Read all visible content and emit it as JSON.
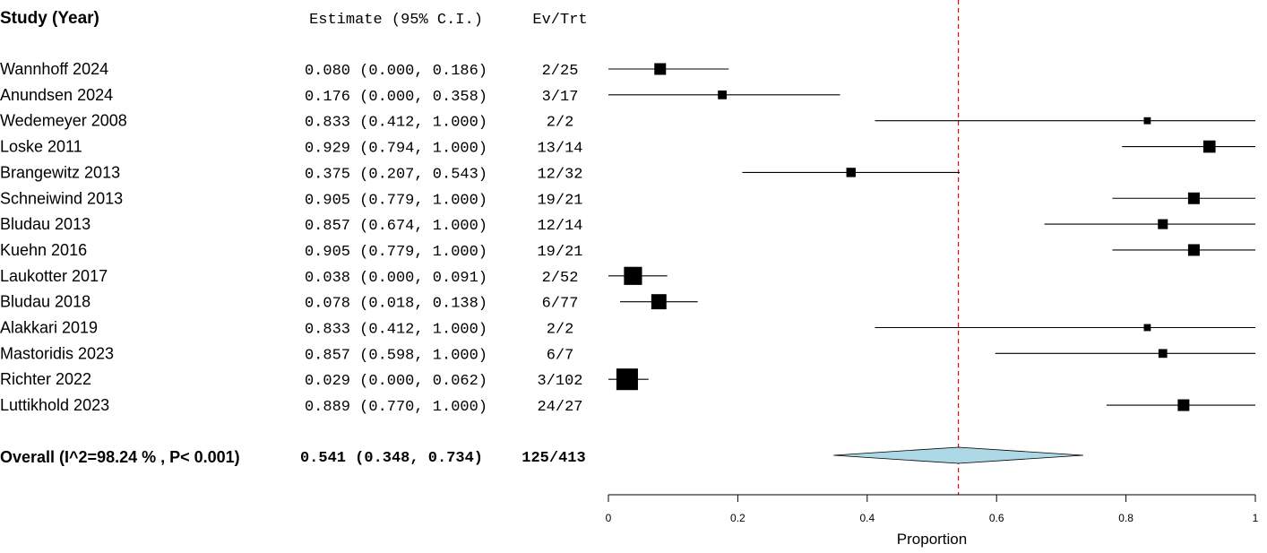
{
  "chart_data": {
    "type": "forest",
    "headers": {
      "study": "Study (Year)",
      "estimate": "Estimate (95% C.I.)",
      "events": "Ev/Trt"
    },
    "studies": [
      {
        "name": "Wannhoff 2024",
        "est": 0.08,
        "lo": 0.0,
        "hi": 0.186,
        "est_text": "0.080 (0.000, 0.186)",
        "ev_trt": "2/25",
        "box": 1.0
      },
      {
        "name": "Anundsen 2024",
        "est": 0.176,
        "lo": 0.0,
        "hi": 0.358,
        "est_text": "0.176 (0.000, 0.358)",
        "ev_trt": "3/17",
        "box": 0.75
      },
      {
        "name": "Wedemeyer 2008",
        "est": 0.833,
        "lo": 0.412,
        "hi": 1.0,
        "est_text": "0.833 (0.412, 1.000)",
        "ev_trt": "2/2",
        "box": 0.6
      },
      {
        "name": "Loske 2011",
        "est": 0.929,
        "lo": 0.794,
        "hi": 1.0,
        "est_text": "0.929 (0.794, 1.000)",
        "ev_trt": "13/14",
        "box": 1.05
      },
      {
        "name": "Brangewitz 2013",
        "est": 0.375,
        "lo": 0.207,
        "hi": 0.543,
        "est_text": "0.375 (0.207, 0.543)",
        "ev_trt": "12/32",
        "box": 0.8
      },
      {
        "name": "Schneiwind 2013",
        "est": 0.905,
        "lo": 0.779,
        "hi": 1.0,
        "est_text": "0.905 (0.779, 1.000)",
        "ev_trt": "19/21",
        "box": 1.0
      },
      {
        "name": "Bludau 2013",
        "est": 0.857,
        "lo": 0.674,
        "hi": 1.0,
        "est_text": "0.857 (0.674, 1.000)",
        "ev_trt": "12/14",
        "box": 0.85
      },
      {
        "name": "Kuehn 2016",
        "est": 0.905,
        "lo": 0.779,
        "hi": 1.0,
        "est_text": "0.905 (0.779, 1.000)",
        "ev_trt": "19/21",
        "box": 1.0
      },
      {
        "name": "Laukotter 2017",
        "est": 0.038,
        "lo": 0.0,
        "hi": 0.091,
        "est_text": "0.038 (0.000, 0.091)",
        "ev_trt": "2/52",
        "box": 1.55
      },
      {
        "name": "Bludau 2018",
        "est": 0.078,
        "lo": 0.018,
        "hi": 0.138,
        "est_text": "0.078 (0.018, 0.138)",
        "ev_trt": "6/77",
        "box": 1.3
      },
      {
        "name": "Alakkari 2019",
        "est": 0.833,
        "lo": 0.412,
        "hi": 1.0,
        "est_text": "0.833 (0.412, 1.000)",
        "ev_trt": "2/2",
        "box": 0.6
      },
      {
        "name": "Mastoridis 2023",
        "est": 0.857,
        "lo": 0.598,
        "hi": 1.0,
        "est_text": "0.857 (0.598, 1.000)",
        "ev_trt": "6/7",
        "box": 0.75
      },
      {
        "name": "Richter 2022",
        "est": 0.029,
        "lo": 0.0,
        "hi": 0.062,
        "est_text": "0.029 (0.000, 0.062)",
        "ev_trt": "3/102",
        "box": 1.85
      },
      {
        "name": "Luttikhold 2023",
        "est": 0.889,
        "lo": 0.77,
        "hi": 1.0,
        "est_text": "0.889 (0.770, 1.000)",
        "ev_trt": "24/27",
        "box": 1.0
      }
    ],
    "overall": {
      "label": "Overall (I^2=98.24 % , P< 0.001)",
      "est": 0.541,
      "lo": 0.348,
      "hi": 0.734,
      "est_text": "0.541 (0.348, 0.734)",
      "ev_trt": "125/413"
    },
    "xlabel": "Proportion",
    "xlim": [
      0,
      1
    ],
    "xticks": [
      0,
      0.2,
      0.4,
      0.6,
      0.8,
      1
    ],
    "xtick_labels": [
      "0",
      "0.2",
      "0.4",
      "0.6",
      "0.8",
      "1"
    ],
    "reference_line": 0.541,
    "colors": {
      "marker": "#000000",
      "diamond_fill": "#add8e6",
      "reference_line": "#ff0000"
    }
  }
}
